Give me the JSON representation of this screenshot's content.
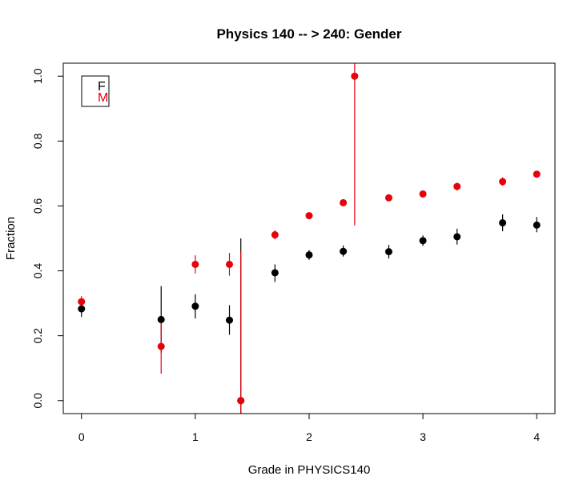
{
  "chart_data": {
    "type": "scatter",
    "title": "Physics 140 -- > 240: Gender",
    "xlabel": "Grade in PHYSICS140",
    "ylabel": "Fraction",
    "xlim": [
      -0.16,
      4.16
    ],
    "ylim": [
      -0.04,
      1.04
    ],
    "x_ticks": [
      "0",
      "1",
      "2",
      "3",
      "4"
    ],
    "y_ticks": [
      "0.0",
      "0.2",
      "0.4",
      "0.6",
      "0.8",
      "1.0"
    ],
    "grid": false,
    "legend": {
      "position": "top-left",
      "entries": [
        "F",
        "M"
      ]
    },
    "series": [
      {
        "name": "F",
        "color": "#000000",
        "points": [
          {
            "x": 0.0,
            "y": 0.283,
            "lo": 0.258,
            "hi": 0.307
          },
          {
            "x": 0.7,
            "y": 0.25,
            "lo": 0.148,
            "hi": 0.353
          },
          {
            "x": 1.0,
            "y": 0.291,
            "lo": 0.253,
            "hi": 0.328
          },
          {
            "x": 1.3,
            "y": 0.248,
            "lo": 0.203,
            "hi": 0.294
          },
          {
            "x": 1.4,
            "y": 0.0,
            "lo": -0.04,
            "hi": 0.5
          },
          {
            "x": 1.7,
            "y": 0.394,
            "lo": 0.366,
            "hi": 0.42
          },
          {
            "x": 2.0,
            "y": 0.449,
            "lo": 0.434,
            "hi": 0.464
          },
          {
            "x": 2.3,
            "y": 0.46,
            "lo": 0.444,
            "hi": 0.478
          },
          {
            "x": 2.7,
            "y": 0.459,
            "lo": 0.438,
            "hi": 0.48
          },
          {
            "x": 3.0,
            "y": 0.493,
            "lo": 0.477,
            "hi": 0.509
          },
          {
            "x": 3.3,
            "y": 0.505,
            "lo": 0.481,
            "hi": 0.53
          },
          {
            "x": 3.7,
            "y": 0.548,
            "lo": 0.522,
            "hi": 0.574
          },
          {
            "x": 4.0,
            "y": 0.541,
            "lo": 0.519,
            "hi": 0.566
          }
        ]
      },
      {
        "name": "M",
        "color": "#e8000b",
        "points": [
          {
            "x": 0.0,
            "y": 0.305,
            "lo": 0.29,
            "hi": 0.322
          },
          {
            "x": 0.7,
            "y": 0.167,
            "lo": 0.083,
            "hi": 0.25
          },
          {
            "x": 1.0,
            "y": 0.42,
            "lo": 0.392,
            "hi": 0.448
          },
          {
            "x": 1.3,
            "y": 0.42,
            "lo": 0.385,
            "hi": 0.455
          },
          {
            "x": 1.4,
            "y": 0.0,
            "lo": -0.04,
            "hi": 0.46
          },
          {
            "x": 1.7,
            "y": 0.511,
            "lo": 0.497,
            "hi": 0.525
          },
          {
            "x": 2.0,
            "y": 0.57,
            "lo": 0.562,
            "hi": 0.578
          },
          {
            "x": 2.3,
            "y": 0.61,
            "lo": 0.6,
            "hi": 0.62
          },
          {
            "x": 2.4,
            "y": 1.0,
            "lo": 0.54,
            "hi": 1.04
          },
          {
            "x": 2.7,
            "y": 0.625,
            "lo": 0.615,
            "hi": 0.635
          },
          {
            "x": 3.0,
            "y": 0.637,
            "lo": 0.628,
            "hi": 0.646
          },
          {
            "x": 3.3,
            "y": 0.66,
            "lo": 0.648,
            "hi": 0.672
          },
          {
            "x": 3.7,
            "y": 0.675,
            "lo": 0.662,
            "hi": 0.688
          },
          {
            "x": 4.0,
            "y": 0.698,
            "lo": 0.69,
            "hi": 0.706
          }
        ]
      }
    ]
  }
}
